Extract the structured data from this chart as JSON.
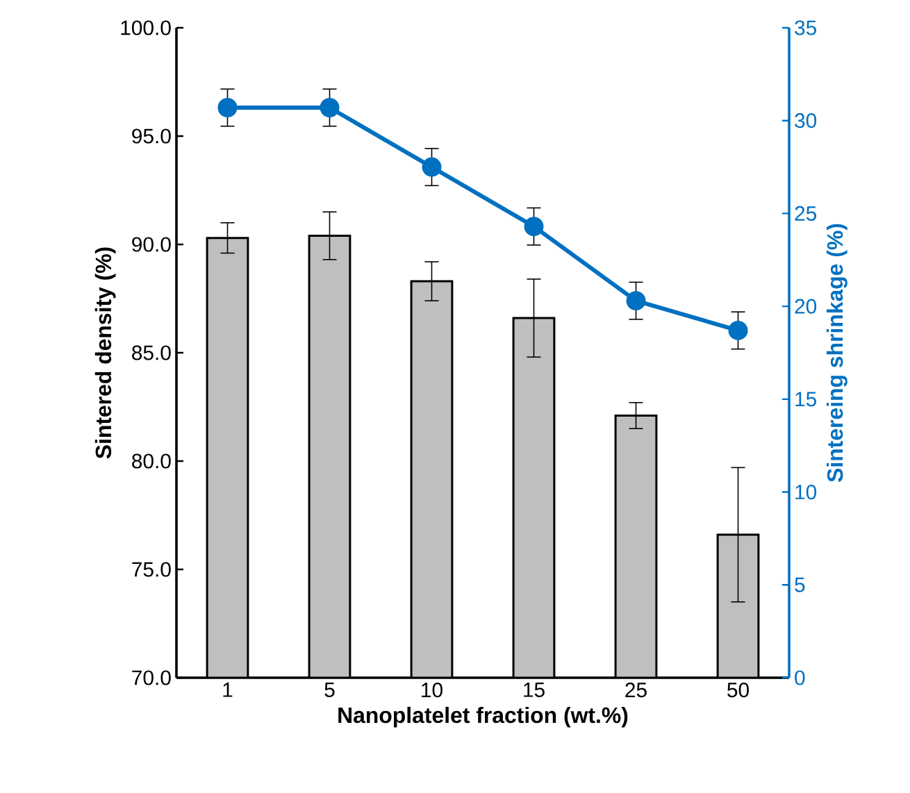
{
  "chart_data": {
    "type": "bar",
    "xlabel": "Nanoplatelet fraction (wt.%)",
    "ylabel": "Sintered density (%)",
    "y2label": "Sintereing shrinkage (%)",
    "categories": [
      "1",
      "5",
      "10",
      "15",
      "25",
      "50"
    ],
    "ylim": [
      70,
      100
    ],
    "yticks": [
      {
        "value": 70,
        "label": "70.0"
      },
      {
        "value": 75,
        "label": "75.0"
      },
      {
        "value": 80,
        "label": "80.0"
      },
      {
        "value": 85,
        "label": "85.0"
      },
      {
        "value": 90,
        "label": "90.0"
      },
      {
        "value": 95,
        "label": "95.0"
      },
      {
        "value": 100,
        "label": "100.0"
      }
    ],
    "y2lim": [
      0,
      35
    ],
    "y2ticks": [
      0,
      5,
      10,
      15,
      20,
      25,
      30,
      35
    ],
    "series": [
      {
        "color": "#bfbfbf",
        "values": [
          90.3,
          90.4,
          88.3,
          86.6,
          82.1,
          76.6
        ],
        "errors": [
          0.7,
          1.1,
          0.9,
          1.8,
          0.6,
          3.1
        ]
      },
      {
        "type": "line",
        "axis": "y2",
        "color": "#0070c0",
        "marker": "circle",
        "values": [
          30.7,
          30.7,
          27.5,
          24.3,
          20.3,
          18.7
        ],
        "errors": [
          1.0,
          1.0,
          1.0,
          1.0,
          1.0,
          1.0
        ]
      }
    ]
  }
}
